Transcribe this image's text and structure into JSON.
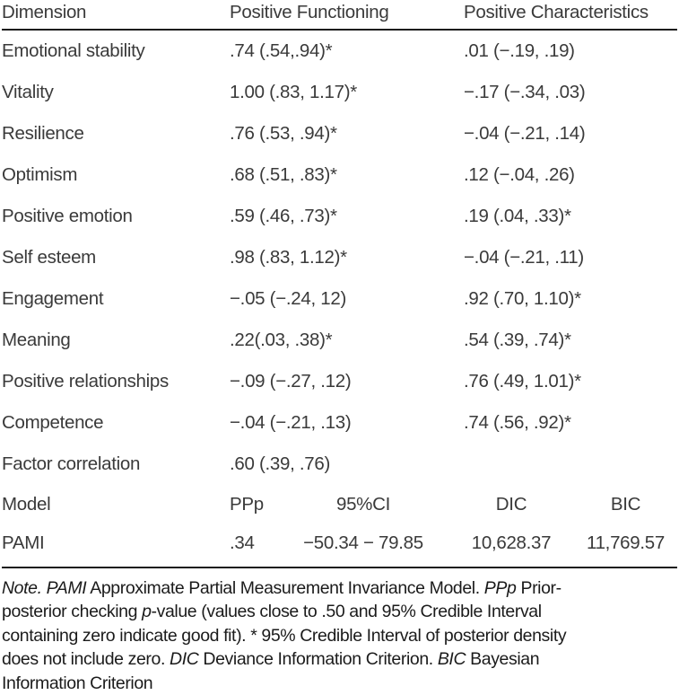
{
  "table": {
    "header": {
      "col1": "Dimension",
      "col2": "Positive Functioning",
      "col3": "Positive Characteristics"
    },
    "rows": [
      {
        "dimension": "Emotional stability",
        "pf": ".74 (.54,.94)*",
        "pc": ".01 (−.19, .19)"
      },
      {
        "dimension": "Vitality",
        "pf": "1.00 (.83, 1.17)*",
        "pc": "−.17 (−.34, .03)"
      },
      {
        "dimension": "Resilience",
        "pf": ".76 (.53, .94)*",
        "pc": "−.04 (−.21, .14)"
      },
      {
        "dimension": "Optimism",
        "pf": ".68 (.51, .83)*",
        "pc": ".12 (−.04, .26)"
      },
      {
        "dimension": "Positive emotion",
        "pf": ".59 (.46, .73)*",
        "pc": ".19 (.04, .33)*"
      },
      {
        "dimension": "Self esteem",
        "pf": ".98 (.83, 1.12)*",
        "pc": "−.04 (−.21, .11)"
      },
      {
        "dimension": "Engagement",
        "pf": "−.05 (−.24, 12)",
        "pc": ".92 (.70, 1.10)*"
      },
      {
        "dimension": "Meaning",
        "pf": ".22(.03, .38)*",
        "pc": ".54 (.39, .74)*"
      },
      {
        "dimension": "Positive relationships",
        "pf": "−.09 (−.27, .12)",
        "pc": ".76 (.49, 1.01)*"
      },
      {
        "dimension": "Competence",
        "pf": "−.04 (−.21, .13)",
        "pc": ".74 (.56, .92)*"
      },
      {
        "dimension": "Factor correlation",
        "pf": ".60 (.39, .76)",
        "pc": ""
      }
    ],
    "model_header": {
      "label": "Model",
      "ppp": "PPp",
      "ci": "95%CI",
      "dic": "DIC",
      "bic": "BIC"
    },
    "model_row": {
      "label": "PAMI",
      "ppp": ".34",
      "ci": "−50.34 − 79.85",
      "dic": "10,628.37",
      "bic": "11,769.57"
    }
  },
  "note": {
    "lines": [
      [
        {
          "t": "Note.",
          "i": true
        },
        {
          "t": " ",
          "i": false
        },
        {
          "t": "PAMI",
          "i": true
        },
        {
          "t": " Approximate Partial Measurement Invariance Model. ",
          "i": false
        },
        {
          "t": "PPp",
          "i": true
        },
        {
          "t": " Prior-",
          "i": false
        }
      ],
      [
        {
          "t": "posterior checking ",
          "i": false
        },
        {
          "t": "p",
          "i": true
        },
        {
          "t": "-value (values close to .50 and 95% Credible Interval",
          "i": false
        }
      ],
      [
        {
          "t": "containing zero indicate good fit). * 95% Credible Interval of posterior density",
          "i": false
        }
      ],
      [
        {
          "t": "does not include zero. ",
          "i": false
        },
        {
          "t": "DIC",
          "i": true
        },
        {
          "t": " Deviance Information Criterion. ",
          "i": false
        },
        {
          "t": "BIC",
          "i": true
        },
        {
          "t": " Bayesian",
          "i": false
        }
      ],
      [
        {
          "t": "Information Criterion",
          "i": false
        }
      ]
    ]
  },
  "colors": {
    "background": "#ffffff",
    "table_text": "#3a3a3a",
    "note_text": "#1b1b1b",
    "rule": "#1c1c1c"
  }
}
